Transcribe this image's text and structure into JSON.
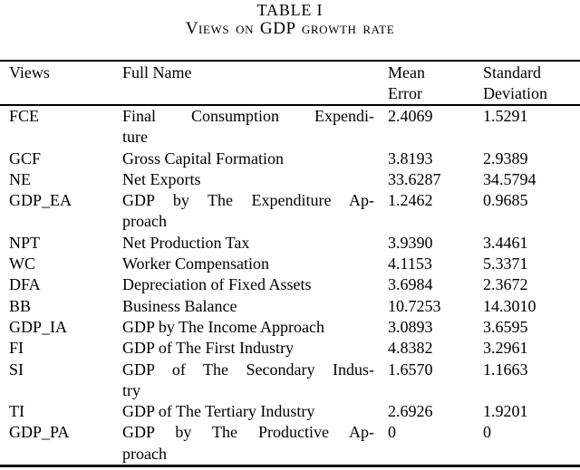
{
  "page": {
    "background": "#ffffff",
    "text_color": "#000000"
  },
  "caption": {
    "label": "TABLE I",
    "title": "Views on GDP growth rate"
  },
  "table": {
    "header": {
      "views": "Views",
      "full_name": "Full Name",
      "mean_error": [
        "Mean",
        "Error"
      ],
      "std_deviation": [
        "Standard",
        "Deviation"
      ]
    },
    "rows": [
      {
        "view": "FCE",
        "full_name": "Final Consumption Expenditure",
        "name_lines": [
          "Final Consumption Expendi-",
          "ture"
        ],
        "mean_error": "2.4069",
        "std_deviation": "1.5291"
      },
      {
        "view": "GCF",
        "full_name": "Gross Capital Formation",
        "name_lines": [
          "Gross Capital Formation"
        ],
        "mean_error": "3.8193",
        "std_deviation": "2.9389"
      },
      {
        "view": "NE",
        "full_name": "Net Exports",
        "name_lines": [
          "Net Exports"
        ],
        "mean_error": "33.6287",
        "std_deviation": "34.5794"
      },
      {
        "view": "GDP_EA",
        "full_name": "GDP by The Expenditure Approach",
        "name_lines": [
          "GDP by The Expenditure Ap-",
          "proach"
        ],
        "mean_error": "1.2462",
        "std_deviation": "0.9685"
      },
      {
        "view": "NPT",
        "full_name": "Net Production Tax",
        "name_lines": [
          "Net Production Tax"
        ],
        "mean_error": "3.9390",
        "std_deviation": "3.4461"
      },
      {
        "view": "WC",
        "full_name": "Worker Compensation",
        "name_lines": [
          "Worker Compensation"
        ],
        "mean_error": "4.1153",
        "std_deviation": "5.3371"
      },
      {
        "view": "DFA",
        "full_name": "Depreciation of Fixed Assets",
        "name_lines": [
          "Depreciation of Fixed Assets"
        ],
        "mean_error": "3.6984",
        "std_deviation": "2.3672"
      },
      {
        "view": "BB",
        "full_name": "Business Balance",
        "name_lines": [
          "Business Balance"
        ],
        "mean_error": "10.7253",
        "std_deviation": "14.3010"
      },
      {
        "view": "GDP_IA",
        "full_name": "GDP by The Income Approach",
        "name_lines": [
          "GDP by The Income Approach"
        ],
        "mean_error": "3.0893",
        "std_deviation": "3.6595"
      },
      {
        "view": "FI",
        "full_name": "GDP of The First Industry",
        "name_lines": [
          "GDP of The First Industry"
        ],
        "mean_error": "4.8382",
        "std_deviation": "3.2961"
      },
      {
        "view": "SI",
        "full_name": "GDP of The Secondary Industry",
        "name_lines": [
          "GDP of The Secondary Indus-",
          "try"
        ],
        "mean_error": "1.6570",
        "std_deviation": "1.1663"
      },
      {
        "view": "TI",
        "full_name": "GDP of The Tertiary Industry",
        "name_lines": [
          "GDP of The Tertiary Industry"
        ],
        "mean_error": "2.6926",
        "std_deviation": "1.9201"
      },
      {
        "view": "GDP_PA",
        "full_name": "GDP by The Productive Approach",
        "name_lines": [
          "GDP by The Productive Ap-",
          "proach"
        ],
        "mean_error": "0",
        "std_deviation": "0"
      }
    ]
  }
}
